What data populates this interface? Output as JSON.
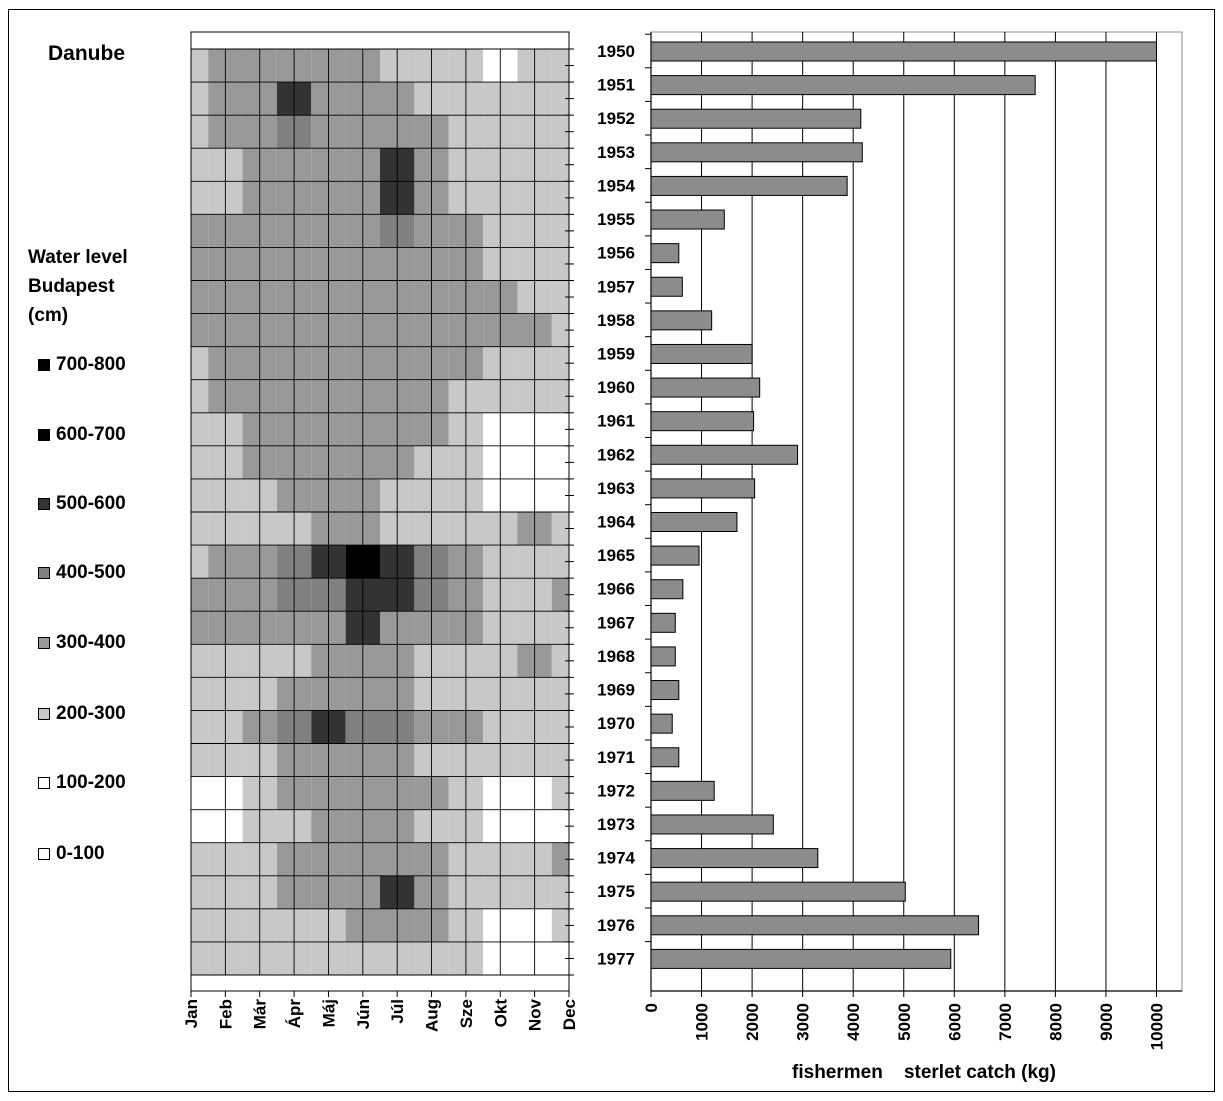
{
  "chart_data": [
    {
      "type": "heatmap",
      "title": "Danube",
      "legend_title": [
        "Water level",
        "Budapest",
        "(cm)"
      ],
      "x_categories": [
        "Jan",
        "Feb",
        "Már",
        "Ápr",
        "Máj",
        "Jún",
        "Júl",
        "Aug",
        "Sze",
        "Okt",
        "Nov",
        "Dec"
      ],
      "y_categories": [
        1950,
        1951,
        1952,
        1953,
        1954,
        1955,
        1956,
        1957,
        1958,
        1959,
        1960,
        1961,
        1962,
        1963,
        1964,
        1965,
        1966,
        1967,
        1968,
        1969,
        1970,
        1971,
        1972,
        1973,
        1974,
        1975,
        1976,
        1977
      ],
      "legend": [
        {
          "label": "700-800",
          "color": "#000000"
        },
        {
          "label": "600-700",
          "color": "#000000"
        },
        {
          "label": "500-600",
          "color": "#333333"
        },
        {
          "label": "400-500",
          "color": "#808080"
        },
        {
          "label": "300-400",
          "color": "#999999"
        },
        {
          "label": "200-300",
          "color": "#c8c8c8"
        },
        {
          "label": "100-200",
          "color": "#ffffff"
        },
        {
          "label": "0-100",
          "color": "#ffffff"
        }
      ],
      "values": [
        [
          2,
          3,
          3,
          3,
          3,
          3,
          2,
          2,
          2,
          1,
          2,
          2
        ],
        [
          2,
          3,
          3,
          5,
          3,
          3,
          3,
          2,
          2,
          2,
          2,
          2
        ],
        [
          2,
          3,
          3,
          4,
          3,
          3,
          3,
          3,
          2,
          2,
          2,
          2
        ],
        [
          2,
          2,
          3,
          3,
          3,
          3,
          5,
          3,
          2,
          2,
          2,
          2
        ],
        [
          2,
          2,
          3,
          3,
          3,
          3,
          5,
          3,
          2,
          2,
          2,
          2
        ],
        [
          3,
          3,
          3,
          3,
          3,
          3,
          4,
          3,
          3,
          2,
          2,
          2
        ],
        [
          3,
          3,
          3,
          3,
          3,
          3,
          3,
          3,
          3,
          2,
          2,
          2
        ],
        [
          3,
          3,
          3,
          3,
          3,
          3,
          3,
          3,
          3,
          3,
          2,
          2
        ],
        [
          3,
          3,
          3,
          3,
          3,
          3,
          3,
          3,
          3,
          3,
          3,
          2
        ],
        [
          2,
          3,
          3,
          3,
          3,
          3,
          3,
          3,
          3,
          2,
          2,
          2
        ],
        [
          2,
          3,
          3,
          3,
          3,
          3,
          3,
          3,
          2,
          2,
          2,
          2
        ],
        [
          2,
          2,
          3,
          3,
          3,
          3,
          3,
          3,
          2,
          1,
          1,
          1
        ],
        [
          2,
          2,
          3,
          3,
          3,
          3,
          3,
          2,
          2,
          1,
          1,
          1
        ],
        [
          2,
          2,
          2,
          3,
          3,
          3,
          2,
          2,
          2,
          1,
          1,
          1
        ],
        [
          2,
          2,
          2,
          2,
          3,
          3,
          2,
          2,
          2,
          2,
          3,
          2
        ],
        [
          2,
          3,
          3,
          4,
          5,
          6,
          5,
          4,
          3,
          2,
          2,
          2
        ],
        [
          3,
          3,
          3,
          4,
          4,
          5,
          5,
          4,
          3,
          2,
          2,
          3
        ],
        [
          3,
          3,
          3,
          3,
          3,
          5,
          3,
          3,
          3,
          2,
          2,
          2
        ],
        [
          2,
          2,
          2,
          2,
          3,
          3,
          3,
          2,
          2,
          2,
          3,
          2
        ],
        [
          2,
          2,
          2,
          3,
          3,
          3,
          3,
          2,
          2,
          2,
          2,
          2
        ],
        [
          2,
          2,
          3,
          4,
          5,
          4,
          4,
          3,
          3,
          2,
          2,
          2
        ],
        [
          2,
          2,
          2,
          3,
          3,
          3,
          3,
          2,
          2,
          2,
          2,
          2
        ],
        [
          1,
          1,
          2,
          3,
          3,
          3,
          3,
          3,
          2,
          1,
          1,
          2
        ],
        [
          1,
          1,
          2,
          2,
          3,
          3,
          3,
          2,
          2,
          1,
          1,
          1
        ],
        [
          2,
          2,
          2,
          3,
          3,
          3,
          3,
          3,
          2,
          2,
          2,
          3
        ],
        [
          2,
          2,
          2,
          3,
          3,
          3,
          5,
          3,
          2,
          2,
          2,
          2
        ],
        [
          2,
          2,
          2,
          2,
          2,
          3,
          3,
          3,
          2,
          1,
          1,
          2
        ],
        [
          2,
          2,
          2,
          2,
          2,
          2,
          2,
          2,
          2,
          1,
          1,
          1
        ]
      ]
    },
    {
      "type": "bar",
      "orientation": "horizontal",
      "categories": [
        "1950",
        "1951",
        "1952",
        "1953",
        "1954",
        "1955",
        "1956",
        "1957",
        "1958",
        "1959",
        "1960",
        "1961",
        "1962",
        "1963",
        "1964",
        "1965",
        "1966",
        "1967",
        "1968",
        "1969",
        "1970",
        "1971",
        "1972",
        "1973",
        "1974",
        "1975",
        "1976",
        "1977"
      ],
      "values": [
        10000,
        7600,
        4150,
        4180,
        3880,
        1450,
        550,
        620,
        1200,
        2000,
        2150,
        2030,
        2900,
        2050,
        1700,
        950,
        630,
        480,
        480,
        550,
        420,
        550,
        1250,
        2420,
        3300,
        5030,
        6480,
        5930
      ],
      "xlabel": "fishermen    sterlet catch (kg)",
      "ylabel": "",
      "xlim": [
        0,
        10000
      ],
      "xticks": [
        0,
        1000,
        2000,
        3000,
        4000,
        5000,
        6000,
        7000,
        8000,
        9000,
        10000
      ],
      "bar_color": "#8c8c8c",
      "grid": "vertical"
    }
  ]
}
